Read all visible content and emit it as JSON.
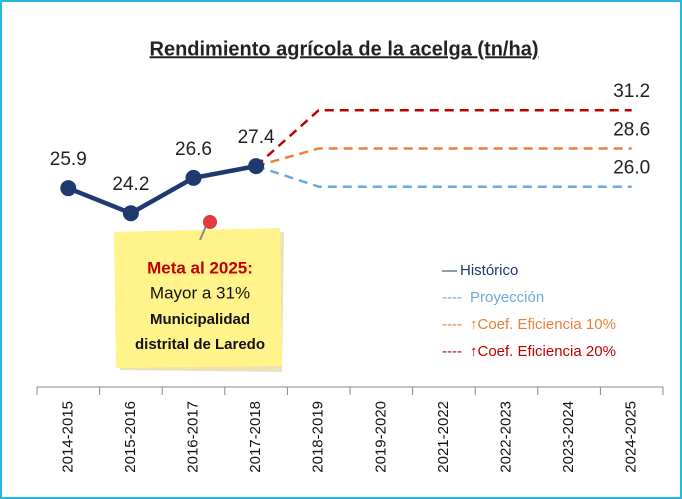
{
  "chart_data": {
    "type": "line",
    "title": "Rendimiento agrícola de la acelga (tn/ha)",
    "categories": [
      "2014-2015",
      "2015-2016",
      "2016-2017",
      "2017-2018",
      "2018-2019",
      "2019-2020",
      "2021-2022",
      "2022-2023",
      "2023-2024",
      "2024-2025"
    ],
    "series": [
      {
        "name": "Histórico",
        "color": "#1f3a6e",
        "dash": false,
        "values": [
          25.9,
          24.2,
          26.6,
          27.4,
          null,
          null,
          null,
          null,
          null,
          null
        ]
      },
      {
        "name": "Proyección",
        "color": "#6fa8dc",
        "dash": true,
        "values": [
          null,
          null,
          null,
          27.4,
          26,
          26,
          26,
          26,
          26,
          26
        ],
        "value_labels": [
          null,
          null,
          null,
          null,
          null,
          null,
          null,
          null,
          null,
          "26.0"
        ]
      },
      {
        "name": "↑Coef. Eficiencia 10%",
        "color": "#e8803a",
        "dash": true,
        "values": [
          null,
          null,
          null,
          27.4,
          28.6,
          28.6,
          28.6,
          28.6,
          28.6,
          28.6
        ],
        "value_labels": [
          null,
          null,
          null,
          null,
          null,
          null,
          null,
          null,
          null,
          "28.6"
        ]
      },
      {
        "name": "↑Coef. Eficiencia 20%",
        "color": "#c00000",
        "dash": true,
        "values": [
          null,
          null,
          null,
          27.4,
          31.2,
          31.2,
          31.2,
          31.2,
          31.2,
          31.2
        ],
        "value_labels": [
          null,
          null,
          null,
          null,
          null,
          null,
          null,
          null,
          null,
          "31.2"
        ]
      }
    ],
    "ylim": [
      20,
      34
    ],
    "annotation": [
      "Meta al 2025:",
      "Mayor a 31%",
      "Municipalidad",
      "distrital de Laredo"
    ]
  }
}
